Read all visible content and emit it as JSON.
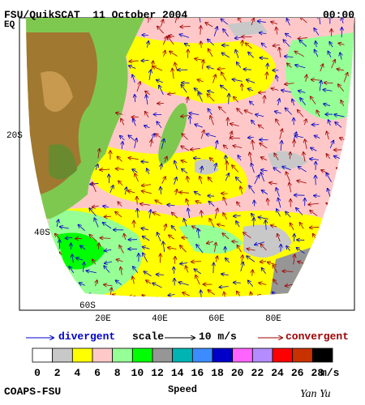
{
  "header": {
    "title": "FSU/QuikSCAT  11 October 2004",
    "time": "00:00"
  },
  "map": {
    "lat_labels": [
      "EQ",
      "20S",
      "40S",
      "60S"
    ],
    "lon_labels": [
      "20E",
      "40E",
      "60E",
      "80E"
    ]
  },
  "legend": {
    "divergent": "divergent",
    "scale": "scale",
    "scale_value": "10 m/s",
    "convergent": "convergent"
  },
  "colorbar": {
    "title": "Speed",
    "unit": "m/s",
    "ticks": [
      0,
      2,
      4,
      6,
      8,
      10,
      12,
      14,
      16,
      18,
      20,
      22,
      24,
      26,
      28
    ],
    "colors": [
      "#ffffff",
      "#c8c8c8",
      "#ffff00",
      "#ffc8c8",
      "#96ff96",
      "#00ff00",
      "#969696",
      "#00b4b4",
      "#3c8cff",
      "#0000c8",
      "#ff64ff",
      "#b48cff",
      "#ff0000",
      "#c83200",
      "#000000"
    ]
  },
  "footer": {
    "left": "COAPS-FSU",
    "right": "Yan Yu"
  }
}
